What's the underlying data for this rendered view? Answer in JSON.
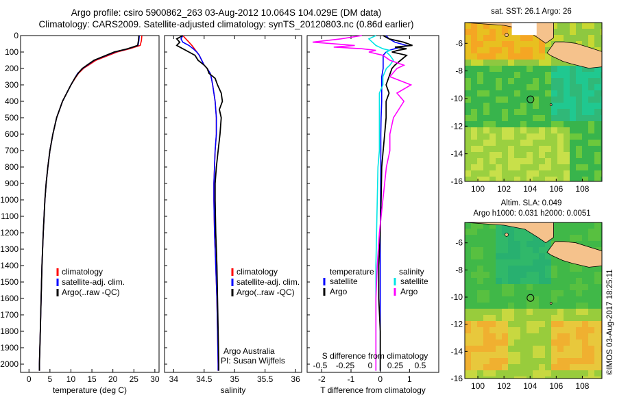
{
  "title_line1": "Argo profile: csiro 5900862_263 03-Aug-2012 10.064S 104.029E (DM data)",
  "title_line2": "Climatology: CARS2009. Satellite-adjusted climatology: synTS_20120803.nc (0.86d earlier)",
  "credit": "©IMOS 03-Aug-2017 18:25:11",
  "colors": {
    "climatology": "#ff0000",
    "satellite": "#0000ff",
    "argo": "#000000",
    "sal_satellite": "#00e5e5",
    "sal_argo": "#ff00ff",
    "land": "#f5c28c"
  },
  "depth_axis": {
    "ylim": [
      0,
      2050
    ],
    "ticks": [
      0,
      100,
      200,
      300,
      400,
      500,
      600,
      700,
      800,
      900,
      1000,
      1100,
      1200,
      1300,
      1400,
      1500,
      1600,
      1700,
      1800,
      1900,
      2000
    ]
  },
  "chart_data": [
    {
      "type": "line",
      "panel": "temperature",
      "xlabel": "temperature (deg C)",
      "xlim": [
        -2,
        31
      ],
      "xticks": [
        0,
        5,
        10,
        15,
        20,
        25,
        30
      ],
      "depth": [
        0,
        30,
        60,
        80,
        100,
        150,
        200,
        230,
        260,
        300,
        400,
        500,
        600,
        700,
        800,
        900,
        1000,
        1200,
        1400,
        1600,
        1800,
        2000,
        2040
      ],
      "series": [
        {
          "name": "climatology",
          "role": "climatology",
          "values": [
            26.9,
            26.8,
            26.5,
            24,
            21,
            16,
            13,
            11.8,
            11,
            10,
            8,
            6.6,
            5.7,
            5.0,
            4.5,
            4.1,
            3.8,
            3.4,
            3.1,
            2.9,
            2.7,
            2.5,
            2.5
          ]
        },
        {
          "name": "satellite-adj. clim.",
          "role": "satellite",
          "values": [
            26.3,
            26.2,
            26,
            23.6,
            20.5,
            15.6,
            12.8,
            11.6,
            10.9,
            10,
            8,
            6.6,
            5.7,
            5.0,
            4.5,
            4.1,
            3.8,
            3.4,
            3.1,
            2.9,
            2.7,
            2.5,
            2.5
          ]
        },
        {
          "name": "Argo(..raw -QC)",
          "role": "argo",
          "values": [
            26.2,
            26.1,
            25.9,
            23.5,
            20.3,
            15.5,
            12.7,
            11.7,
            10.9,
            10.0,
            8.0,
            6.6,
            5.7,
            5.0,
            4.5,
            4.1,
            3.8,
            3.4,
            3.1,
            2.9,
            2.7,
            2.5,
            2.5
          ]
        }
      ],
      "legend": [
        "climatology",
        "satellite-adj. clim.",
        "Argo(..raw -QC)"
      ]
    },
    {
      "type": "line",
      "panel": "salinity",
      "xlabel": "salinity",
      "xlim": [
        33.85,
        36.1
      ],
      "xticks": [
        34,
        34.5,
        35,
        35.5,
        36
      ],
      "xtick_labels": [
        "34",
        "34.5",
        "35",
        "35.5",
        "36"
      ],
      "depth": [
        0,
        20,
        40,
        60,
        80,
        100,
        120,
        150,
        180,
        200,
        230,
        260,
        300,
        350,
        400,
        450,
        500,
        600,
        700,
        800,
        900,
        1000,
        1200,
        1400,
        1600,
        1800,
        2000,
        2040
      ],
      "series": [
        {
          "name": "climatology",
          "role": "climatology",
          "values": [
            34.15,
            34.2,
            34.25,
            34.3,
            34.34,
            34.38,
            34.42,
            34.46,
            34.5,
            34.55,
            34.6,
            34.62,
            34.64,
            34.66,
            34.68,
            34.69,
            34.7,
            34.7,
            34.68,
            34.67,
            34.66,
            34.66,
            34.67,
            34.69,
            34.71,
            34.72,
            34.73,
            34.73
          ]
        },
        {
          "name": "satellite-adj. clim.",
          "role": "satellite",
          "values": [
            34.15,
            34.12,
            34.15,
            34.25,
            34.32,
            34.38,
            34.42,
            34.46,
            34.5,
            34.55,
            34.6,
            34.62,
            34.64,
            34.66,
            34.68,
            34.69,
            34.7,
            34.7,
            34.68,
            34.67,
            34.66,
            34.66,
            34.67,
            34.69,
            34.71,
            34.72,
            34.73,
            34.73
          ]
        },
        {
          "name": "Argo(..raw -QC)",
          "role": "argo",
          "values": [
            34.15,
            34.05,
            34.1,
            34.05,
            34.15,
            34.25,
            34.35,
            34.4,
            34.5,
            34.55,
            34.58,
            34.68,
            34.72,
            34.78,
            34.8,
            34.75,
            34.78,
            34.76,
            34.73,
            34.7,
            34.68,
            34.68,
            34.69,
            34.71,
            34.72,
            34.73,
            34.74,
            34.74
          ]
        }
      ],
      "legend": [
        "climatology",
        "satellite-adj. clim.",
        "Argo(..raw -QC)"
      ],
      "annotations": [
        "Argo Australia",
        "PI: Susan Wijffels"
      ]
    },
    {
      "type": "line",
      "panel": "difference",
      "xlabel": "T difference from climatology",
      "xlabel_top": "S difference from climatology",
      "xlim": [
        -2.5,
        2.0
      ],
      "xticks": [
        -2,
        -1,
        0,
        1
      ],
      "xtick_labels": [
        "-2",
        "-1",
        "0",
        "1"
      ],
      "top_ticks": [
        -0.5,
        -0.25,
        0,
        0.25,
        0.5
      ],
      "top_tick_labels": [
        "-0.5",
        "-0.25",
        "0",
        "0.25",
        "0.5"
      ],
      "depth": [
        0,
        20,
        40,
        60,
        70,
        80,
        90,
        100,
        120,
        150,
        180,
        200,
        250,
        300,
        350,
        400,
        500,
        600,
        700,
        800,
        1000,
        1200,
        1400,
        1600,
        1800,
        2000,
        2040
      ],
      "series": [
        {
          "name": "temperature satellite",
          "role": "satellite",
          "values": [
            0.2,
            0.3,
            0.5,
            0.9,
            0.7,
            0.5,
            0.3,
            0.2,
            0.1,
            0.1,
            0.1,
            0.1,
            0.05,
            0.05,
            0.05,
            0.05,
            0.03,
            0.02,
            0.02,
            0.02,
            0.01,
            0.0,
            0.0,
            0.0,
            0.0,
            0.0,
            0.0
          ]
        },
        {
          "name": "temperature Argo",
          "role": "argo",
          "values": [
            0.1,
            0.3,
            0.8,
            1.1,
            0.5,
            0.9,
            0.6,
            0.4,
            0.9,
            0.7,
            0.5,
            0.4,
            0.3,
            0.2,
            0.3,
            0.2,
            0.2,
            0.15,
            0.1,
            0.05,
            0.03,
            0.0,
            -0.05,
            -0.05,
            0.0,
            0.0,
            0.0
          ]
        },
        {
          "name": "salinity satellite",
          "role": "sal_satellite",
          "values": [
            0.0,
            -0.1,
            -0.05,
            0.0,
            0.05,
            0.1,
            0.2,
            0.15,
            0.2,
            0.25,
            0.2,
            0.15,
            0.1,
            0.1,
            0.05,
            0.05,
            0.05,
            0.05,
            0.05,
            0.03,
            0.02,
            0.01,
            0.0,
            0.0,
            0.0,
            0.0,
            0.0
          ]
        },
        {
          "name": "salinity Argo",
          "role": "sal_argo",
          "values": [
            -0.2,
            -0.5,
            -0.9,
            -0.3,
            -0.6,
            -0.2,
            0.0,
            -0.1,
            0.1,
            0.2,
            0.4,
            0.3,
            0.2,
            0.5,
            0.3,
            0.4,
            0.25,
            0.2,
            0.2,
            0.15,
            0.1,
            0.05,
            0.02,
            0.0,
            0.0,
            0.0,
            0.0
          ]
        }
      ],
      "legend": {
        "temperature_title": "temperature",
        "salinity_title": "salinity",
        "items": [
          "satellite",
          "Argo",
          "satellite",
          "Argo"
        ]
      }
    },
    {
      "type": "heatmap",
      "panel": "sst_map",
      "title": "sat. SST: 26.1 Argo: 26",
      "xlim": [
        99,
        109.5
      ],
      "ylim": [
        -16,
        -4.5
      ],
      "xticks": [
        100,
        102,
        104,
        106,
        108
      ],
      "yticks": [
        -6,
        -8,
        -10,
        -12,
        -14,
        -16
      ],
      "marker": {
        "lon": 104.03,
        "lat": -10.06
      }
    },
    {
      "type": "heatmap",
      "panel": "sla_map",
      "title_line1": "Altim. SLA: 0.049",
      "title_line2": "Argo h1000: 0.031 h2000: 0.0051",
      "xlim": [
        99,
        109.5
      ],
      "ylim": [
        -16,
        -4.5
      ],
      "xticks": [
        100,
        102,
        104,
        106,
        108
      ],
      "yticks": [
        -6,
        -8,
        -10,
        -12,
        -14,
        -16
      ],
      "marker": {
        "lon": 104.03,
        "lat": -10.06
      }
    }
  ]
}
